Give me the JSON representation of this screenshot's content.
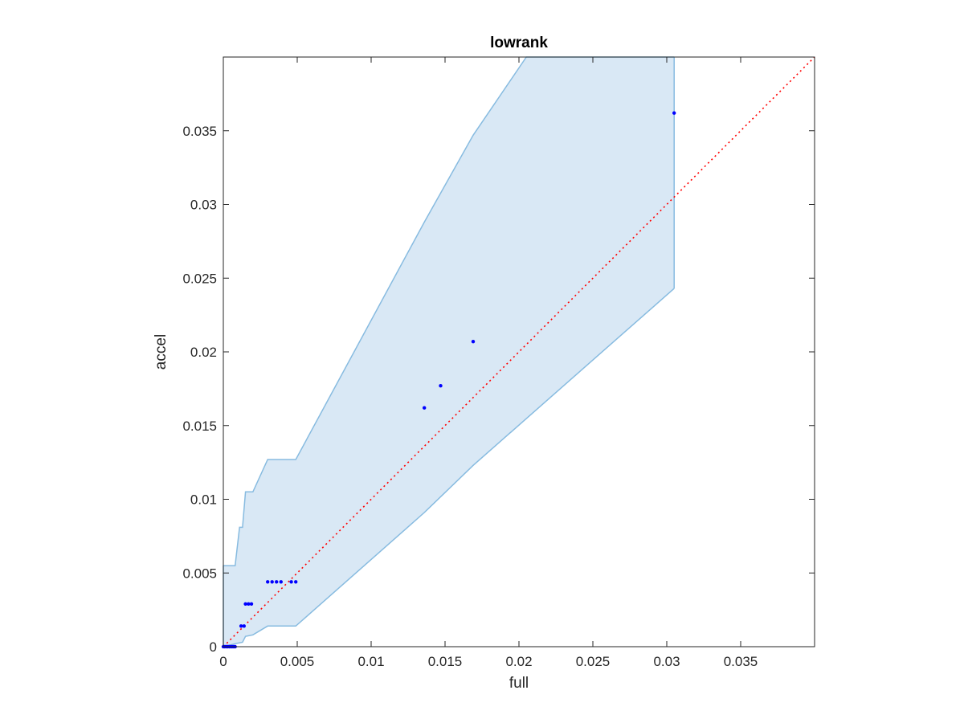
{
  "chart_data": {
    "type": "scatter",
    "title": "lowrank",
    "xlabel": "full",
    "ylabel": "accel",
    "xlim": [
      0,
      0.04
    ],
    "ylim": [
      0,
      0.04
    ],
    "xticks": [
      0,
      0.005,
      0.01,
      0.015,
      0.02,
      0.025,
      0.03,
      0.035
    ],
    "xtick_labels": [
      "0",
      "0.005",
      "0.01",
      "0.015",
      "0.02",
      "0.025",
      "0.03",
      "0.035"
    ],
    "yticks": [
      0,
      0.005,
      0.01,
      0.015,
      0.02,
      0.025,
      0.03,
      0.035
    ],
    "ytick_labels": [
      "0",
      "0.005",
      "0.01",
      "0.015",
      "0.02",
      "0.025",
      "0.03",
      "0.035"
    ],
    "grid": false,
    "points": {
      "color": "#0000ff",
      "x": [
        0,
        0.0001,
        0.0002,
        0.0003,
        0.0004,
        0.0005,
        0.0006,
        0.0007,
        0.0008,
        0.0012,
        0.0014,
        0.0015,
        0.0017,
        0.0019,
        0.003,
        0.0033,
        0.0036,
        0.0039,
        0.0046,
        0.0049,
        0.0136,
        0.0147,
        0.0169,
        0.0305
      ],
      "y": [
        0,
        0,
        0,
        0,
        0,
        0,
        0,
        0,
        0,
        0.0014,
        0.0014,
        0.0029,
        0.0029,
        0.0029,
        0.0044,
        0.0044,
        0.0044,
        0.0044,
        0.0044,
        0.0044,
        0.0162,
        0.0177,
        0.0207,
        0.0362
      ]
    },
    "band": {
      "color": "#d9e8f5",
      "edge_color": "#87bbe0",
      "upper": {
        "x": [
          0,
          0.0008,
          0.0011,
          0.0013,
          0.0015,
          0.002,
          0.003,
          0.0049,
          0.0136,
          0.0169,
          0.0205,
          0.0305
        ],
        "y": [
          0.0055,
          0.0055,
          0.0081,
          0.0081,
          0.0105,
          0.0105,
          0.0127,
          0.0127,
          0.0288,
          0.0347,
          0.04,
          0.04
        ]
      },
      "lower": {
        "x": [
          0,
          0.0008,
          0.0013,
          0.0015,
          0.002,
          0.003,
          0.0049,
          0.0136,
          0.0169,
          0.0305
        ],
        "y": [
          0,
          0.0002,
          0.0003,
          0.0007,
          0.0008,
          0.0014,
          0.0014,
          0.0091,
          0.0123,
          0.0243
        ]
      }
    },
    "reference_line": {
      "style": "dotted",
      "color": "#ff0000",
      "x": [
        0,
        0.04
      ],
      "y": [
        0,
        0.04
      ]
    }
  }
}
